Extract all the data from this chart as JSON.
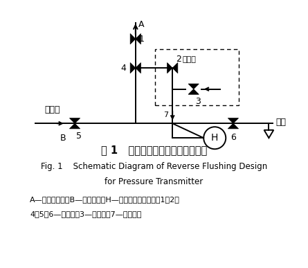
{
  "title_cn": "图 1   压力变送器反冲水设计示意图",
  "title_en_line1": "Fig. 1    Schematic Diagram of Reverse Flushing Design",
  "title_en_line2": "for Pressure Transmitter",
  "caption_line1": "A—接过程压力；B—接反冲水；H—压力变送器高压侧；1、2、",
  "caption_line2": "4、5、6—截止阀；3—排污阀；7—排污丝堵",
  "label_A": "A",
  "label_1": "1",
  "label_2": "2",
  "label_3": "3",
  "label_4": "4",
  "label_5": "5",
  "label_6": "6",
  "label_7": "7",
  "label_B": "B",
  "label_H": "H",
  "label_erfa": "二阀组",
  "label_fanchongshui": "反冲水",
  "label_dilou": "地漏",
  "bg_color": "#ffffff",
  "line_color": "#000000"
}
